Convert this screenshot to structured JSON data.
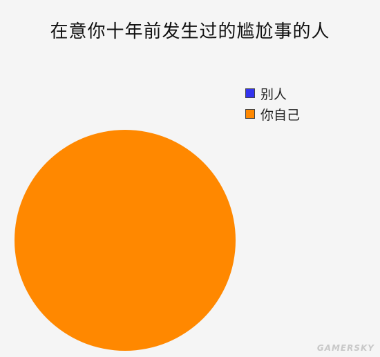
{
  "chart_data": {
    "type": "pie",
    "title": "在意你十年前发生过的尴尬事的人",
    "categories": [
      "别人",
      "你自己"
    ],
    "values": [
      0,
      100
    ],
    "colors": [
      "#3333ee",
      "#ff8800"
    ],
    "legend_position": "top-right"
  },
  "watermark": "GAMERSKY"
}
